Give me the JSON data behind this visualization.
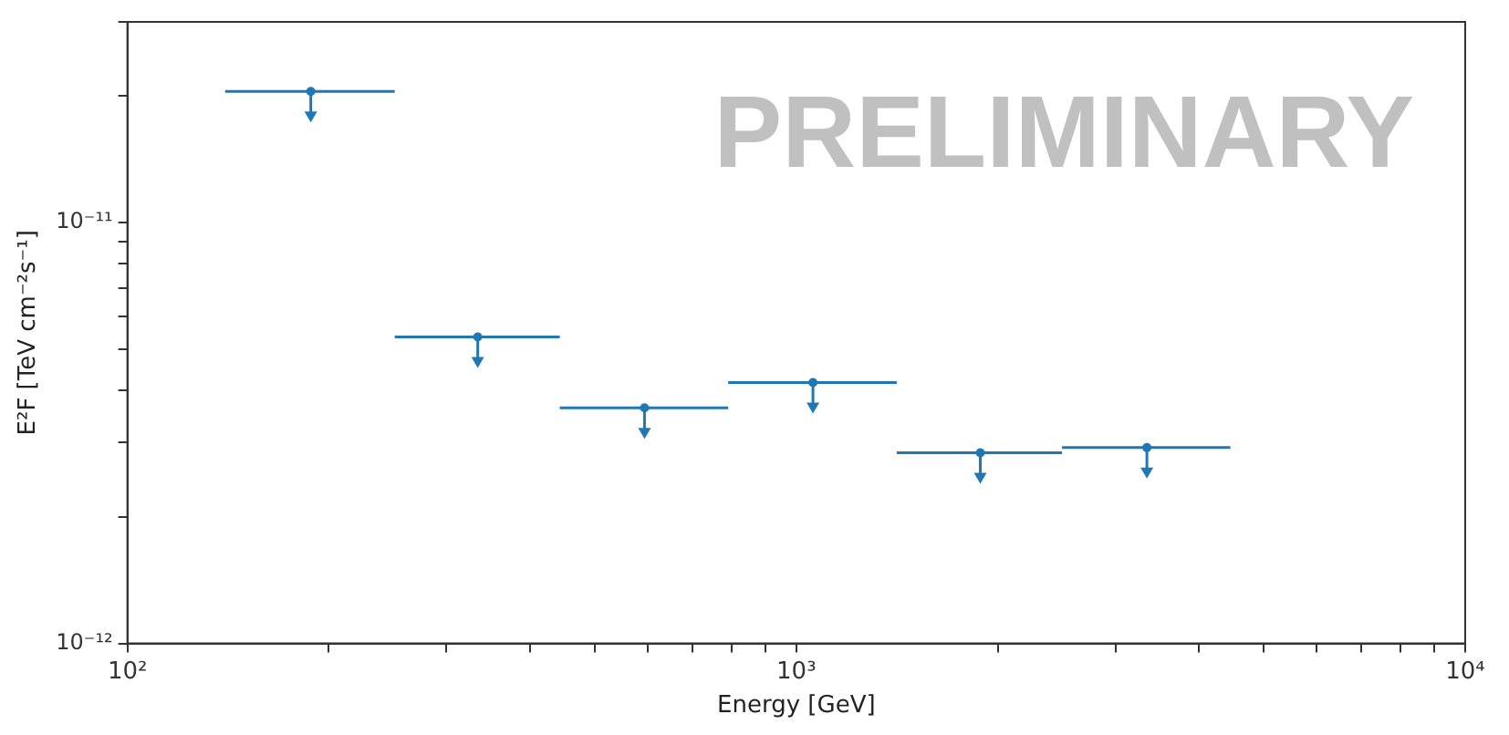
{
  "chart_data": {
    "type": "scatter",
    "xlabel": "Energy [GeV]",
    "ylabel": "E²F [TeV cm⁻²s⁻¹]",
    "annotations": [
      "PRELIMINARY"
    ],
    "x": [
      188,
      334,
      593,
      1059,
      1884,
      3343
    ],
    "series": [
      {
        "color": "#1f77b4",
        "values": [
          2.05e-11,
          5.35e-12,
          3.63e-12,
          4.17e-12,
          2.84e-12,
          2.92e-12
        ],
        "xerrors": [
          [
            140,
            251
          ],
          [
            251,
            443
          ],
          [
            443,
            791
          ],
          [
            791,
            1413
          ],
          [
            1413,
            2496
          ],
          [
            2496,
            4456
          ]
        ]
      }
    ],
    "log": "xy",
    "xlim": [
      100,
      10000
    ],
    "ylim": [
      1e-12,
      3e-11
    ],
    "xticks": [
      {
        "value": 100,
        "label": "10²"
      },
      {
        "value": 200,
        "label": null
      },
      {
        "value": 300,
        "label": null
      },
      {
        "value": 400,
        "label": null
      },
      {
        "value": 500,
        "label": null
      },
      {
        "value": 600,
        "label": null
      },
      {
        "value": 700,
        "label": null
      },
      {
        "value": 800,
        "label": null
      },
      {
        "value": 900,
        "label": null
      },
      {
        "value": 1000,
        "label": "10³"
      },
      {
        "value": 2000,
        "label": null
      },
      {
        "value": 3000,
        "label": null
      },
      {
        "value": 4000,
        "label": null
      },
      {
        "value": 5000,
        "label": null
      },
      {
        "value": 6000,
        "label": null
      },
      {
        "value": 7000,
        "label": null
      },
      {
        "value": 8000,
        "label": null
      },
      {
        "value": 9000,
        "label": null
      },
      {
        "value": 10000,
        "label": "10⁴"
      }
    ],
    "yticks": [
      {
        "value": 1e-12,
        "label": "10⁻¹²"
      },
      {
        "value": 2e-12,
        "label": null
      },
      {
        "value": 3e-12,
        "label": null
      },
      {
        "value": 4e-12,
        "label": null
      },
      {
        "value": 5e-12,
        "label": null
      },
      {
        "value": 6e-12,
        "label": null
      },
      {
        "value": 7e-12,
        "label": null
      },
      {
        "value": 8e-12,
        "label": null
      },
      {
        "value": 9e-12,
        "label": null
      },
      {
        "value": 1e-11,
        "label": "10⁻¹¹"
      },
      {
        "value": 2e-11,
        "label": null
      },
      {
        "value": 3e-11,
        "label": null
      }
    ],
    "marker": "circle",
    "grid": false,
    "legend": false
  }
}
